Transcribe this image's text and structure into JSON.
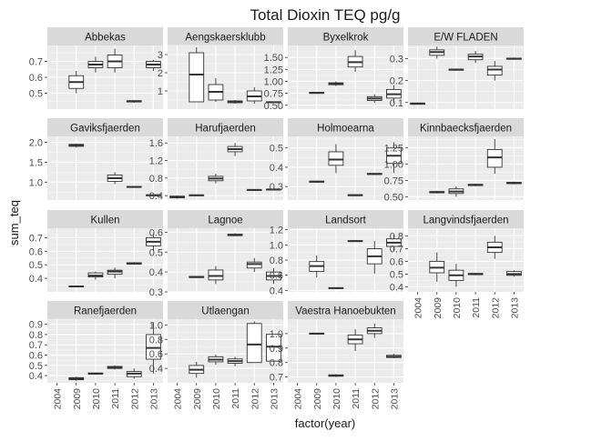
{
  "chart_data": {
    "type": "boxplot-facet",
    "title": "Total Dioxin TEQ pg/g",
    "xlabel": "factor(year)",
    "ylabel": "sum_teq",
    "grid": true,
    "facet_columns": 4,
    "x_ticks": [
      "2004",
      "2009",
      "2010",
      "2011",
      "2012",
      "2013"
    ],
    "facets": [
      {
        "name": "Abbekas",
        "ylim": [
          0.4,
          0.8
        ],
        "yticks": [
          0.5,
          0.6,
          0.7
        ],
        "boxes": [
          {
            "year": "2009",
            "min": 0.5,
            "q1": 0.53,
            "median": 0.57,
            "q3": 0.61,
            "max": 0.64
          },
          {
            "year": "2010",
            "min": 0.63,
            "q1": 0.66,
            "median": 0.68,
            "q3": 0.7,
            "max": 0.73
          },
          {
            "year": "2011",
            "min": 0.63,
            "q1": 0.66,
            "median": 0.7,
            "q3": 0.74,
            "max": 0.78
          },
          {
            "year": "2012",
            "min": 0.44,
            "q1": 0.445,
            "median": 0.45,
            "q3": 0.452,
            "max": 0.455
          },
          {
            "year": "2013",
            "min": 0.64,
            "q1": 0.66,
            "median": 0.68,
            "q3": 0.7,
            "max": 0.71
          }
        ]
      },
      {
        "name": "Aengskaersklubb",
        "ylim": [
          0,
          3.5
        ],
        "yticks": [
          1,
          2,
          3
        ],
        "boxes": [
          {
            "year": "2009",
            "min": 0.4,
            "q1": 0.4,
            "median": 1.9,
            "q3": 3.1,
            "max": 3.4
          },
          {
            "year": "2010",
            "min": 0.4,
            "q1": 0.5,
            "median": 0.95,
            "q3": 1.35,
            "max": 1.7
          },
          {
            "year": "2011",
            "min": 0.3,
            "q1": 0.35,
            "median": 0.42,
            "q3": 0.45,
            "max": 0.5
          },
          {
            "year": "2012",
            "min": 0.3,
            "q1": 0.45,
            "median": 0.7,
            "q3": 1.0,
            "max": 1.2
          },
          {
            "year": "2013",
            "min": 0.35,
            "q1": 0.37,
            "median": 0.38,
            "q3": 0.4,
            "max": 0.42
          }
        ]
      },
      {
        "name": "Byxelkrok",
        "ylim": [
          0.42,
          1.75
        ],
        "yticks": [
          0.5,
          0.75,
          1.0,
          1.25,
          1.5
        ],
        "boxes": [
          {
            "year": "2009",
            "min": 0.74,
            "q1": 0.75,
            "median": 0.76,
            "q3": 0.77,
            "max": 0.78
          },
          {
            "year": "2010",
            "min": 0.9,
            "q1": 0.93,
            "median": 0.95,
            "q3": 0.97,
            "max": 1.0
          },
          {
            "year": "2011",
            "min": 1.2,
            "q1": 1.3,
            "median": 1.4,
            "q3": 1.52,
            "max": 1.65
          },
          {
            "year": "2012",
            "min": 0.55,
            "q1": 0.6,
            "median": 0.64,
            "q3": 0.68,
            "max": 0.73
          },
          {
            "year": "2013",
            "min": 0.55,
            "q1": 0.65,
            "median": 0.73,
            "q3": 0.83,
            "max": 0.92
          }
        ]
      },
      {
        "name": "E/W FLADEN",
        "ylim": [
          0.07,
          0.36
        ],
        "yticks": [
          0.1,
          0.2,
          0.3
        ],
        "boxes": [
          {
            "year": "2004",
            "min": 0.09,
            "q1": 0.092,
            "median": 0.095,
            "q3": 0.098,
            "max": 0.1
          },
          {
            "year": "2009",
            "min": 0.3,
            "q1": 0.315,
            "median": 0.33,
            "q3": 0.34,
            "max": 0.355
          },
          {
            "year": "2010",
            "min": 0.245,
            "q1": 0.247,
            "median": 0.25,
            "q3": 0.252,
            "max": 0.255
          },
          {
            "year": "2011",
            "min": 0.28,
            "q1": 0.295,
            "median": 0.31,
            "q3": 0.32,
            "max": 0.335
          },
          {
            "year": "2012",
            "min": 0.2,
            "q1": 0.225,
            "median": 0.25,
            "q3": 0.265,
            "max": 0.29
          },
          {
            "year": "2013",
            "min": 0.295,
            "q1": 0.297,
            "median": 0.3,
            "q3": 0.302,
            "max": 0.305
          }
        ]
      },
      {
        "name": "Gaviksfjaerden",
        "ylim": [
          0.55,
          2.15
        ],
        "yticks": [
          1.0,
          1.5,
          2.0
        ],
        "boxes": [
          {
            "year": "2009",
            "min": 1.87,
            "q1": 1.9,
            "median": 1.93,
            "q3": 1.95,
            "max": 1.97
          },
          {
            "year": "2010",
            "min": null,
            "q1": null,
            "median": null,
            "q3": null,
            "max": null
          },
          {
            "year": "2011",
            "min": 0.95,
            "q1": 1.02,
            "median": 1.1,
            "q3": 1.18,
            "max": 1.25
          },
          {
            "year": "2012",
            "min": 0.86,
            "q1": 0.87,
            "median": 0.88,
            "q3": 0.89,
            "max": 0.9
          },
          {
            "year": "2013",
            "min": 0.65,
            "q1": 0.66,
            "median": 0.67,
            "q3": 0.68,
            "max": 0.69
          }
        ]
      },
      {
        "name": "Harufjaerden",
        "ylim": [
          0.3,
          1.75
        ],
        "yticks": [
          0.4,
          0.8,
          1.2,
          1.6
        ],
        "boxes": [
          {
            "year": "2004",
            "min": 0.33,
            "q1": 0.35,
            "median": 0.37,
            "q3": 0.39,
            "max": 0.4
          },
          {
            "year": "2009",
            "min": 0.4,
            "q1": 0.405,
            "median": 0.41,
            "q3": 0.415,
            "max": 0.42
          },
          {
            "year": "2010",
            "min": 0.68,
            "q1": 0.74,
            "median": 0.79,
            "q3": 0.84,
            "max": 0.9
          },
          {
            "year": "2011",
            "min": 1.3,
            "q1": 1.4,
            "median": 1.46,
            "q3": 1.52,
            "max": 1.6
          },
          {
            "year": "2012",
            "min": 0.52,
            "q1": 0.525,
            "median": 0.53,
            "q3": 0.535,
            "max": 0.54
          },
          {
            "year": "2013",
            "min": 0.53,
            "q1": 0.535,
            "median": 0.54,
            "q3": 0.545,
            "max": 0.55
          }
        ]
      },
      {
        "name": "Holmoearna",
        "ylim": [
          0.23,
          0.56
        ],
        "yticks": [
          0.3,
          0.4,
          0.5
        ],
        "boxes": [
          {
            "year": "2009",
            "min": 0.32,
            "q1": 0.323,
            "median": 0.325,
            "q3": 0.328,
            "max": 0.33
          },
          {
            "year": "2010",
            "min": 0.37,
            "q1": 0.41,
            "median": 0.44,
            "q3": 0.48,
            "max": 0.52
          },
          {
            "year": "2011",
            "min": 0.25,
            "q1": 0.253,
            "median": 0.255,
            "q3": 0.258,
            "max": 0.26
          },
          {
            "year": "2012",
            "min": 0.36,
            "q1": 0.363,
            "median": 0.365,
            "q3": 0.368,
            "max": 0.37
          },
          {
            "year": "2013",
            "min": 0.37,
            "q1": 0.42,
            "median": 0.46,
            "q3": 0.5,
            "max": 0.53
          }
        ]
      },
      {
        "name": "Kinnbaecksfjaerden",
        "ylim": [
          0.45,
          1.42
        ],
        "yticks": [
          0.5,
          0.75,
          1.0,
          1.25
        ],
        "boxes": [
          {
            "year": "2009",
            "min": 0.55,
            "q1": 0.56,
            "median": 0.57,
            "q3": 0.58,
            "max": 0.59
          },
          {
            "year": "2010",
            "min": 0.5,
            "q1": 0.55,
            "median": 0.58,
            "q3": 0.62,
            "max": 0.66
          },
          {
            "year": "2011",
            "min": 0.66,
            "q1": 0.67,
            "median": 0.68,
            "q3": 0.69,
            "max": 0.7
          },
          {
            "year": "2012",
            "min": 0.85,
            "q1": 0.95,
            "median": 1.1,
            "q3": 1.22,
            "max": 1.38
          },
          {
            "year": "2013",
            "min": 0.69,
            "q1": 0.7,
            "median": 0.71,
            "q3": 0.72,
            "max": 0.73
          }
        ]
      },
      {
        "name": "Kullen",
        "ylim": [
          0.3,
          0.77
        ],
        "yticks": [
          0.4,
          0.5,
          0.6,
          0.7
        ],
        "boxes": [
          {
            "year": "2009",
            "min": 0.335,
            "q1": 0.337,
            "median": 0.34,
            "q3": 0.342,
            "max": 0.345
          },
          {
            "year": "2010",
            "min": 0.39,
            "q1": 0.41,
            "median": 0.42,
            "q3": 0.44,
            "max": 0.45
          },
          {
            "year": "2011",
            "min": 0.4,
            "q1": 0.43,
            "median": 0.45,
            "q3": 0.46,
            "max": 0.48
          },
          {
            "year": "2012",
            "min": 0.5,
            "q1": 0.505,
            "median": 0.51,
            "q3": 0.515,
            "max": 0.52
          },
          {
            "year": "2013",
            "min": 0.6,
            "q1": 0.64,
            "median": 0.67,
            "q3": 0.7,
            "max": 0.73
          }
        ]
      },
      {
        "name": "Lagnoe",
        "ylim": [
          0.3,
          0.62
        ],
        "yticks": [
          0.3,
          0.4,
          0.5,
          0.6
        ],
        "boxes": [
          {
            "year": "2009",
            "min": 0.37,
            "q1": 0.372,
            "median": 0.375,
            "q3": 0.378,
            "max": 0.38
          },
          {
            "year": "2010",
            "min": 0.34,
            "q1": 0.36,
            "median": 0.38,
            "q3": 0.41,
            "max": 0.43
          },
          {
            "year": "2011",
            "min": 0.58,
            "q1": 0.583,
            "median": 0.585,
            "q3": 0.59,
            "max": 0.595
          },
          {
            "year": "2012",
            "min": 0.4,
            "q1": 0.42,
            "median": 0.44,
            "q3": 0.45,
            "max": 0.47
          },
          {
            "year": "2013",
            "min": 0.34,
            "q1": 0.36,
            "median": 0.38,
            "q3": 0.4,
            "max": 0.42
          }
        ]
      },
      {
        "name": "Landsort",
        "ylim": [
          0.38,
          1.22
        ],
        "yticks": [
          0.4,
          0.6,
          0.8,
          1.0,
          1.2
        ],
        "boxes": [
          {
            "year": "2009",
            "min": 0.57,
            "q1": 0.65,
            "median": 0.72,
            "q3": 0.78,
            "max": 0.86
          },
          {
            "year": "2010",
            "min": 0.42,
            "q1": 0.425,
            "median": 0.43,
            "q3": 0.435,
            "max": 0.44
          },
          {
            "year": "2011",
            "min": 1.04,
            "q1": 1.045,
            "median": 1.05,
            "q3": 1.055,
            "max": 1.06
          },
          {
            "year": "2012",
            "min": 0.62,
            "q1": 0.75,
            "median": 0.85,
            "q3": 0.95,
            "max": 1.05
          },
          {
            "year": "2013",
            "min": 0.92,
            "q1": 0.98,
            "median": 1.03,
            "q3": 1.08,
            "max": 1.13
          }
        ]
      },
      {
        "name": "Langvindsfjaerden",
        "ylim": [
          0.36,
          0.86
        ],
        "yticks": [
          0.4,
          0.5,
          0.6,
          0.7,
          0.8
        ],
        "boxes": [
          {
            "year": "2009",
            "min": 0.44,
            "q1": 0.51,
            "median": 0.55,
            "q3": 0.6,
            "max": 0.67
          },
          {
            "year": "2010",
            "min": 0.4,
            "q1": 0.45,
            "median": 0.49,
            "q3": 0.53,
            "max": 0.58
          },
          {
            "year": "2011",
            "min": 0.49,
            "q1": 0.495,
            "median": 0.5,
            "q3": 0.505,
            "max": 0.51
          },
          {
            "year": "2012",
            "min": 0.62,
            "q1": 0.67,
            "median": 0.71,
            "q3": 0.75,
            "max": 0.8
          },
          {
            "year": "2013",
            "min": 0.48,
            "q1": 0.49,
            "median": 0.5,
            "q3": 0.52,
            "max": 0.53
          }
        ]
      },
      {
        "name": "Ranefjaerden",
        "ylim": [
          0.33,
          0.95
        ],
        "yticks": [
          0.4,
          0.5,
          0.6,
          0.7,
          0.8,
          0.9
        ],
        "boxes": [
          {
            "year": "2009",
            "min": 0.35,
            "q1": 0.36,
            "median": 0.37,
            "q3": 0.38,
            "max": 0.39
          },
          {
            "year": "2010",
            "min": 0.41,
            "q1": 0.415,
            "median": 0.42,
            "q3": 0.425,
            "max": 0.43
          },
          {
            "year": "2011",
            "min": 0.46,
            "q1": 0.47,
            "median": 0.48,
            "q3": 0.49,
            "max": 0.5
          },
          {
            "year": "2012",
            "min": 0.37,
            "q1": 0.39,
            "median": 0.42,
            "q3": 0.44,
            "max": 0.47
          },
          {
            "year": "2013",
            "min": 0.42,
            "q1": 0.56,
            "median": 0.67,
            "q3": 0.8,
            "max": 0.92
          }
        ]
      },
      {
        "name": "Utlaengan",
        "ylim": [
          0.2,
          1.08
        ],
        "yticks": [
          0.4,
          0.6,
          0.8,
          1.0
        ],
        "boxes": [
          {
            "year": "2009",
            "min": 0.27,
            "q1": 0.33,
            "median": 0.38,
            "q3": 0.44,
            "max": 0.49
          },
          {
            "year": "2010",
            "min": 0.45,
            "q1": 0.49,
            "median": 0.52,
            "q3": 0.56,
            "max": 0.59
          },
          {
            "year": "2011",
            "min": 0.43,
            "q1": 0.47,
            "median": 0.5,
            "q3": 0.53,
            "max": 0.56
          },
          {
            "year": "2012",
            "min": 0.48,
            "q1": 0.48,
            "median": 0.73,
            "q3": 1.02,
            "max": 1.05
          },
          {
            "year": "2013",
            "min": 0.5,
            "q1": 0.5,
            "median": 0.7,
            "q3": 0.87,
            "max": 0.87
          }
        ]
      },
      {
        "name": "Vaestra Hanoebukten",
        "ylim": [
          0.66,
          1.1
        ],
        "yticks": [
          0.7,
          0.8,
          0.9,
          1.0
        ],
        "boxes": [
          {
            "year": "2009",
            "min": 0.995,
            "q1": 0.997,
            "median": 1.0,
            "q3": 1.002,
            "max": 1.005
          },
          {
            "year": "2010",
            "min": 0.7,
            "q1": 0.705,
            "median": 0.71,
            "q3": 0.715,
            "max": 0.72
          },
          {
            "year": "2011",
            "min": 0.88,
            "q1": 0.93,
            "median": 0.96,
            "q3": 0.99,
            "max": 1.03
          },
          {
            "year": "2012",
            "min": 0.97,
            "q1": 1.0,
            "median": 1.02,
            "q3": 1.04,
            "max": 1.07
          },
          {
            "year": "2013",
            "min": 0.83,
            "q1": 0.835,
            "median": 0.84,
            "q3": 0.85,
            "max": 0.86
          }
        ]
      }
    ]
  },
  "colors": {
    "panel_bg": "#ebebeb",
    "strip_bg": "#d9d9d9",
    "grid_major": "#ffffff",
    "box_fill": "#ffffff",
    "box_stroke": "#333333",
    "text": "#1a1a1a",
    "tick_text": "#4d4d4d"
  }
}
